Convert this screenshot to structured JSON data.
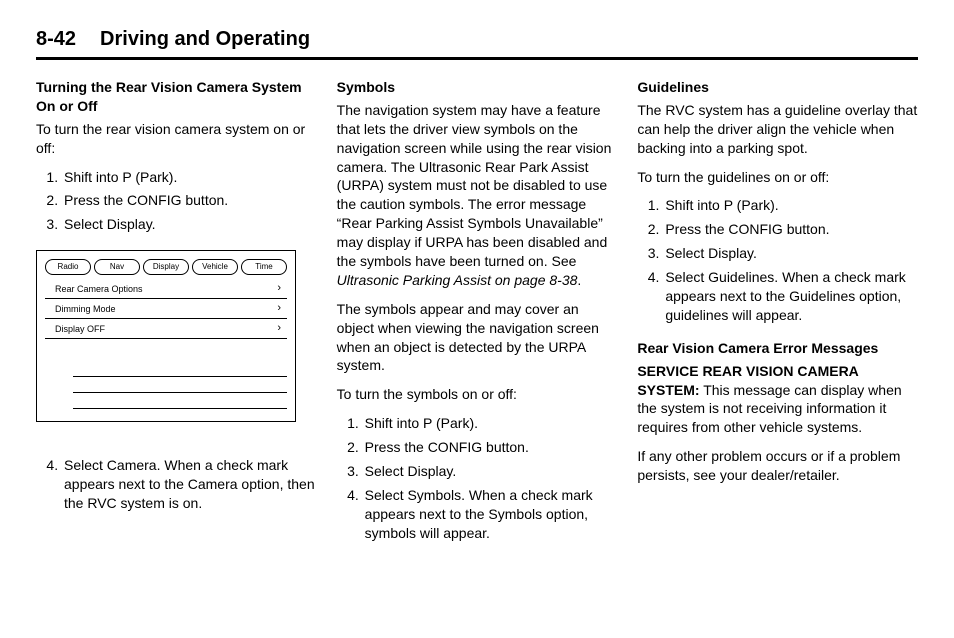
{
  "header": {
    "page_number": "8-42",
    "section": "Driving and Operating"
  },
  "col1": {
    "h1": "Turning the Rear Vision Camera System On or Off",
    "p1": "To turn the rear vision camera system on or off:",
    "steps_a": [
      "Shift into P (Park).",
      "Press the CONFIG button.",
      "Select Display."
    ],
    "screen": {
      "tabs": [
        "Radio",
        "Nav",
        "Display",
        "Vehicle",
        "Time"
      ],
      "rows": [
        "Rear Camera Options",
        "Dimming Mode",
        "Display OFF"
      ]
    },
    "step4": "Select Camera. When a check mark appears next to the Camera option, then the RVC system is on."
  },
  "col2": {
    "h1": "Symbols",
    "p1a": "The navigation system may have a feature that lets the driver view symbols on the navigation screen while using the rear vision camera. The Ultrasonic Rear Park Assist (URPA) system must not be disabled to use the caution symbols. The error message “Rear Parking Assist Symbols Unavailable” may display if URPA has been disabled and the symbols have been turned on. See ",
    "p1b_italic": "Ultrasonic Parking Assist on page 8-38",
    "p1c": ".",
    "p2": "The symbols appear and may cover an object when viewing the navigation screen when an object is detected by the URPA system.",
    "p3": "To turn the symbols on or off:",
    "steps": [
      "Shift into P (Park).",
      "Press the CONFIG button.",
      "Select Display.",
      "Select Symbols. When a check mark appears next to the Symbols option, symbols will appear."
    ]
  },
  "col3": {
    "h1": "Guidelines",
    "p1": "The RVC system has a guideline overlay that can help the driver align the vehicle when backing into a parking spot.",
    "p2": "To turn the guidelines on or off:",
    "steps": [
      "Shift into P (Park).",
      "Press the CONFIG button.",
      "Select Display.",
      "Select Guidelines. When a check mark appears next to the Guidelines option, guidelines will appear."
    ],
    "h2": "Rear Vision Camera Error Messages",
    "p3_lead": "SERVICE REAR VISION CAMERA SYSTEM:",
    "p3_body": "  This message can display when the system is not receiving information it requires from other vehicle systems.",
    "p4": "If any other problem occurs or if a problem persists, see your dealer/retailer."
  }
}
